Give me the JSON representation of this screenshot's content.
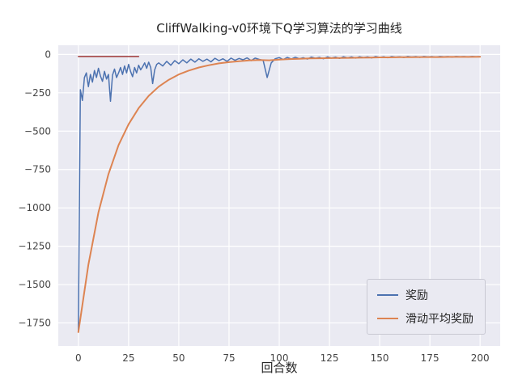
{
  "chart_data": {
    "type": "line",
    "title": "CliffWalking-v0环境下Q学习算法的学习曲线",
    "xlabel": "回合数",
    "ylabel": "",
    "xlim": [
      -10,
      210
    ],
    "ylim": [
      -1900,
      60
    ],
    "xticks": [
      0,
      25,
      50,
      75,
      100,
      125,
      150,
      175,
      200
    ],
    "yticks": [
      0,
      -250,
      -500,
      -750,
      -1000,
      -1250,
      -1500,
      -1750
    ],
    "grid": true,
    "legend_position": "lower right",
    "colors": {
      "axes_bg": "#eaeaf2",
      "grid": "#ffffff",
      "tick_label": "#444444",
      "title": "#262626"
    },
    "series": [
      {
        "name": "奖励",
        "color": "#4c72b0",
        "width": 1.5,
        "legend": true,
        "points": [
          [
            0,
            -1800
          ],
          [
            1,
            -230
          ],
          [
            2,
            -300
          ],
          [
            3,
            -150
          ],
          [
            4,
            -120
          ],
          [
            5,
            -210
          ],
          [
            6,
            -130
          ],
          [
            7,
            -180
          ],
          [
            8,
            -105
          ],
          [
            9,
            -150
          ],
          [
            10,
            -90
          ],
          [
            11,
            -140
          ],
          [
            12,
            -175
          ],
          [
            13,
            -110
          ],
          [
            14,
            -160
          ],
          [
            15,
            -130
          ],
          [
            16,
            -305
          ],
          [
            17,
            -135
          ],
          [
            18,
            -95
          ],
          [
            19,
            -150
          ],
          [
            20,
            -120
          ],
          [
            21,
            -85
          ],
          [
            22,
            -130
          ],
          [
            23,
            -75
          ],
          [
            24,
            -120
          ],
          [
            25,
            -65
          ],
          [
            26,
            -110
          ],
          [
            27,
            -145
          ],
          [
            28,
            -85
          ],
          [
            29,
            -120
          ],
          [
            30,
            -70
          ],
          [
            31,
            -100
          ],
          [
            32,
            -80
          ],
          [
            33,
            -55
          ],
          [
            34,
            -90
          ],
          [
            35,
            -50
          ],
          [
            36,
            -85
          ],
          [
            37,
            -190
          ],
          [
            38,
            -100
          ],
          [
            39,
            -65
          ],
          [
            40,
            -55
          ],
          [
            42,
            -75
          ],
          [
            44,
            -45
          ],
          [
            46,
            -70
          ],
          [
            48,
            -40
          ],
          [
            50,
            -60
          ],
          [
            52,
            -35
          ],
          [
            54,
            -55
          ],
          [
            56,
            -30
          ],
          [
            58,
            -50
          ],
          [
            60,
            -28
          ],
          [
            62,
            -45
          ],
          [
            64,
            -30
          ],
          [
            66,
            -48
          ],
          [
            68,
            -25
          ],
          [
            70,
            -40
          ],
          [
            72,
            -28
          ],
          [
            74,
            -45
          ],
          [
            76,
            -24
          ],
          [
            78,
            -38
          ],
          [
            80,
            -26
          ],
          [
            82,
            -35
          ],
          [
            84,
            -22
          ],
          [
            86,
            -40
          ],
          [
            88,
            -24
          ],
          [
            90,
            -32
          ],
          [
            92,
            -38
          ],
          [
            94,
            -150
          ],
          [
            96,
            -55
          ],
          [
            98,
            -28
          ],
          [
            100,
            -20
          ],
          [
            102,
            -34
          ],
          [
            104,
            -19
          ],
          [
            106,
            -30
          ],
          [
            108,
            -18
          ],
          [
            110,
            -28
          ],
          [
            112,
            -21
          ],
          [
            114,
            -30
          ],
          [
            116,
            -17
          ],
          [
            118,
            -25
          ],
          [
            120,
            -19
          ],
          [
            122,
            -28
          ],
          [
            124,
            -16
          ],
          [
            126,
            -24
          ],
          [
            128,
            -17
          ],
          [
            130,
            -26
          ],
          [
            132,
            -15
          ],
          [
            134,
            -22
          ],
          [
            136,
            -16
          ],
          [
            138,
            -24
          ],
          [
            140,
            -15
          ],
          [
            142,
            -20
          ],
          [
            144,
            -16
          ],
          [
            146,
            -22
          ],
          [
            148,
            -14
          ],
          [
            150,
            -19
          ],
          [
            152,
            -15
          ],
          [
            154,
            -21
          ],
          [
            156,
            -14
          ],
          [
            158,
            -18
          ],
          [
            160,
            -15
          ],
          [
            162,
            -20
          ],
          [
            164,
            -13
          ],
          [
            166,
            -17
          ],
          [
            168,
            -14
          ],
          [
            170,
            -19
          ],
          [
            172,
            -13
          ],
          [
            174,
            -16
          ],
          [
            176,
            -14
          ],
          [
            178,
            -18
          ],
          [
            180,
            -13
          ],
          [
            182,
            -15
          ],
          [
            184,
            -14
          ],
          [
            186,
            -17
          ],
          [
            188,
            -13
          ],
          [
            190,
            -15
          ],
          [
            192,
            -14
          ],
          [
            194,
            -16
          ],
          [
            196,
            -13
          ],
          [
            198,
            -15
          ],
          [
            200,
            -14
          ]
        ]
      },
      {
        "name": "滑动平均奖励",
        "color": "#dd8452",
        "width": 2,
        "legend": true,
        "points": [
          [
            0,
            -1810
          ],
          [
            5,
            -1370
          ],
          [
            10,
            -1030
          ],
          [
            15,
            -780
          ],
          [
            20,
            -590
          ],
          [
            25,
            -455
          ],
          [
            30,
            -350
          ],
          [
            35,
            -270
          ],
          [
            40,
            -210
          ],
          [
            45,
            -165
          ],
          [
            50,
            -130
          ],
          [
            55,
            -105
          ],
          [
            60,
            -85
          ],
          [
            65,
            -70
          ],
          [
            70,
            -58
          ],
          [
            75,
            -50
          ],
          [
            80,
            -44
          ],
          [
            85,
            -39
          ],
          [
            90,
            -36
          ],
          [
            95,
            -38
          ],
          [
            100,
            -34
          ],
          [
            105,
            -30
          ],
          [
            110,
            -28
          ],
          [
            115,
            -26
          ],
          [
            120,
            -25
          ],
          [
            125,
            -24
          ],
          [
            130,
            -23
          ],
          [
            135,
            -22
          ],
          [
            140,
            -21
          ],
          [
            145,
            -20
          ],
          [
            150,
            -19
          ],
          [
            155,
            -19
          ],
          [
            160,
            -18
          ],
          [
            165,
            -18
          ],
          [
            170,
            -17
          ],
          [
            175,
            -17
          ],
          [
            180,
            -17
          ],
          [
            185,
            -16
          ],
          [
            190,
            -16
          ],
          [
            195,
            -16
          ],
          [
            200,
            -15
          ]
        ]
      },
      {
        "name": "",
        "color": "#a03a3a",
        "width": 1.5,
        "legend": false,
        "points": [
          [
            0,
            -13
          ],
          [
            30,
            -13
          ]
        ]
      }
    ]
  }
}
